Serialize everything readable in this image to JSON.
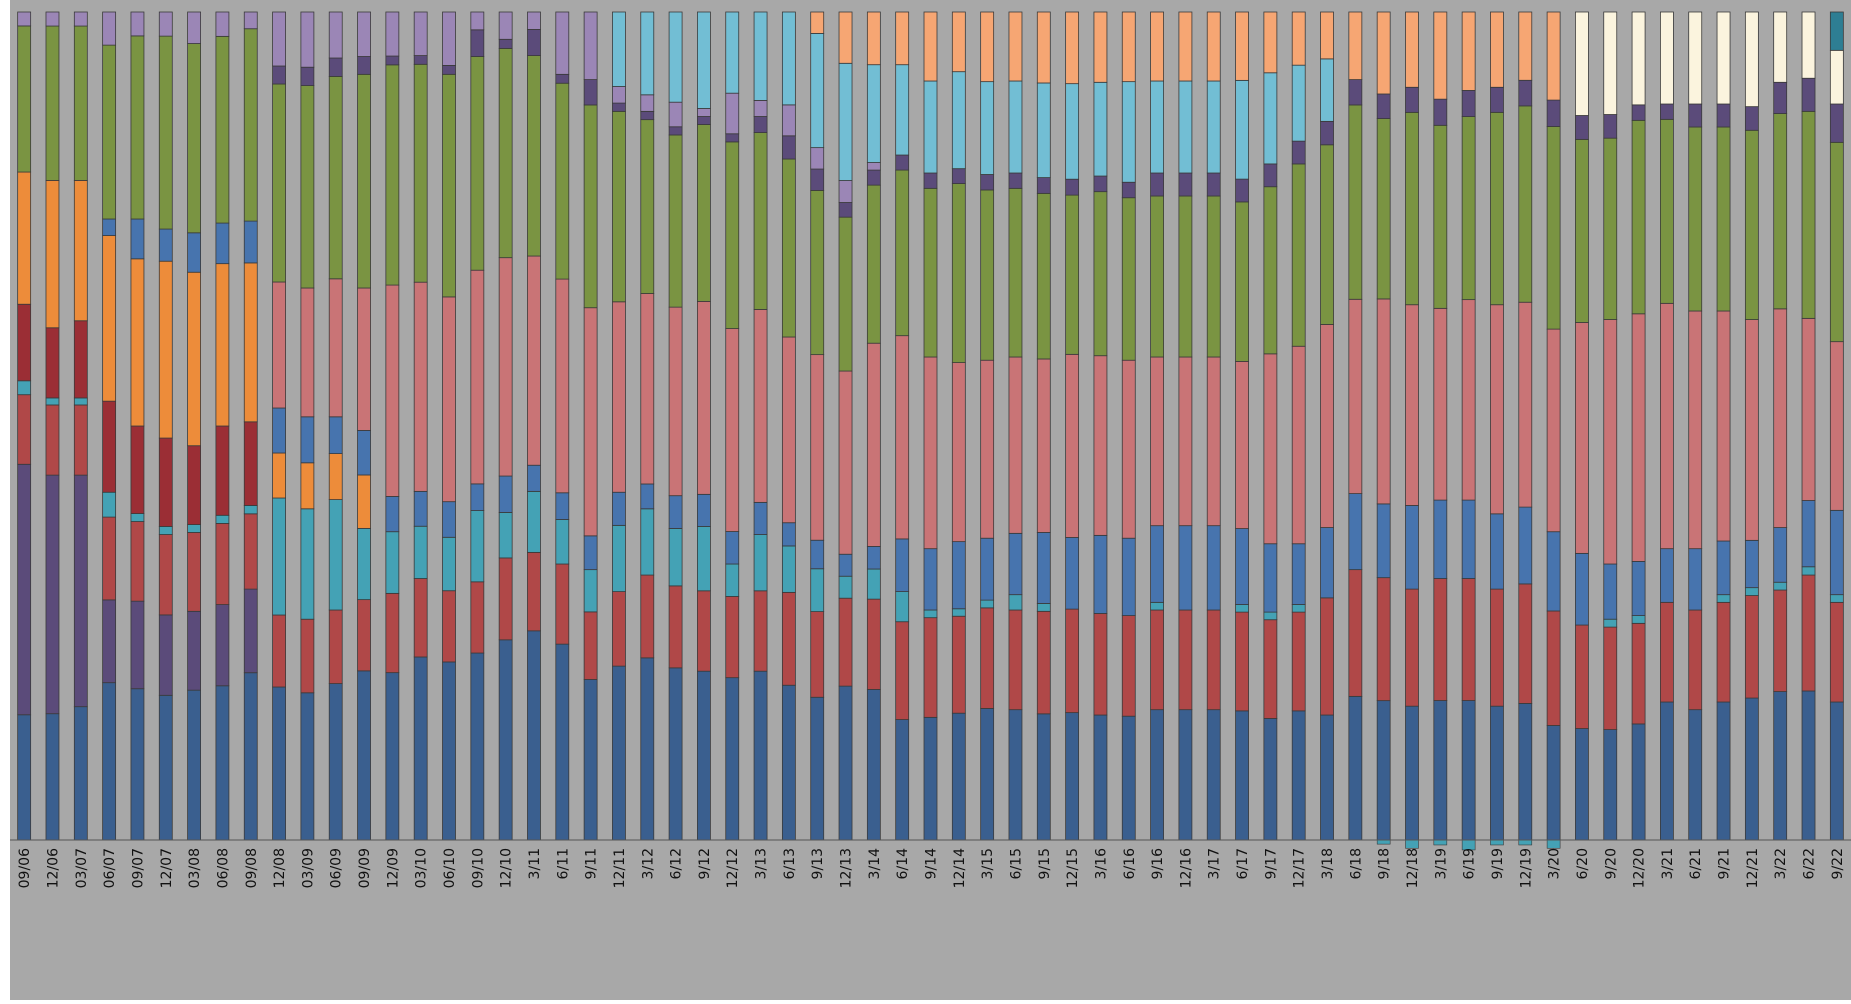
{
  "chart_data": {
    "type": "bar",
    "stacked": "percent",
    "title": "",
    "xlabel": "",
    "ylabel": "",
    "grid": false,
    "legend": "none",
    "ylim": [
      0,
      100
    ],
    "categories": [
      "09/06",
      "12/06",
      "03/07",
      "06/07",
      "09/07",
      "12/07",
      "03/08",
      "06/08",
      "09/08",
      "12/08",
      "03/09",
      "06/09",
      "09/09",
      "12/09",
      "03/10",
      "06/10",
      "09/10",
      "12/10",
      "3/11",
      "6/11",
      "9/11",
      "12/11",
      "3/12",
      "6/12",
      "9/12",
      "12/12",
      "3/13",
      "6/13",
      "9/13",
      "12/13",
      "3/14",
      "6/14",
      "9/14",
      "12/14",
      "3/15",
      "6/15",
      "9/15",
      "12/15",
      "3/16",
      "6/16",
      "9/16",
      "12/16",
      "3/17",
      "6/17",
      "9/17",
      "12/17",
      "3/18",
      "6/18",
      "9/18",
      "12/18",
      "3/19",
      "6/19",
      "9/19",
      "12/19",
      "3/20",
      "6/20",
      "9/20",
      "12/20",
      "3/21",
      "6/21",
      "9/21",
      "12/21",
      "3/22",
      "6/22",
      "9/22"
    ],
    "series": [
      {
        "color": "#3A5F8F",
        "values": [
          18,
          18,
          19,
          19,
          19,
          18,
          19,
          19,
          20,
          17,
          16,
          17,
          19,
          19,
          21,
          20,
          21,
          22,
          24,
          22,
          19,
          21,
          22,
          21,
          21,
          20,
          21,
          20,
          20,
          21,
          20,
          16,
          16,
          17,
          17,
          17,
          16,
          16,
          16,
          16,
          17,
          17,
          17,
          17,
          16,
          17,
          16,
          17,
          17,
          16,
          16,
          16,
          16,
          16,
          13,
          14,
          14,
          15,
          18,
          17,
          18,
          18,
          19,
          18,
          18
        ]
      },
      {
        "color": "#5B4B7A",
        "values": [
          36,
          34,
          33,
          10,
          11,
          10,
          10,
          10,
          10,
          0,
          0,
          0,
          0,
          0,
          0,
          0,
          0,
          0,
          0,
          0,
          0,
          0,
          0,
          0,
          0,
          0,
          0,
          0,
          0,
          0,
          0,
          0,
          0,
          0,
          0,
          0,
          0,
          0,
          0,
          0,
          0,
          0,
          0,
          0,
          0,
          0,
          0,
          0,
          0,
          0,
          0,
          0,
          0,
          0,
          0,
          0,
          0,
          0,
          0,
          0,
          0,
          0,
          0,
          0,
          0
        ]
      },
      {
        "color": "#B04848",
        "values": [
          10,
          10,
          10,
          10,
          10,
          10,
          10,
          10,
          9,
          8,
          8,
          8,
          8,
          9,
          9,
          8,
          8,
          9,
          9,
          9,
          8,
          9,
          10,
          10,
          10,
          10,
          10,
          12,
          12,
          12,
          12,
          13,
          13,
          13,
          13,
          13,
          13,
          13,
          13,
          13,
          13,
          13,
          13,
          13,
          13,
          13,
          15,
          15,
          15,
          14,
          14,
          14,
          14,
          14,
          13,
          13,
          13,
          13,
          13,
          13,
          13,
          13,
          13,
          14,
          13
        ]
      },
      {
        "color": "#44A2B5",
        "values": [
          2,
          1,
          1,
          3,
          1,
          1,
          1,
          1,
          1,
          13,
          12,
          12,
          8,
          7,
          6,
          6,
          8,
          5,
          7,
          5,
          5,
          8,
          8,
          7,
          8,
          4,
          7,
          6,
          6,
          3,
          4,
          4,
          1,
          1,
          1,
          2,
          1,
          0,
          0,
          0,
          1,
          0,
          0,
          1,
          1,
          1,
          0,
          0,
          0,
          0,
          0,
          0,
          0,
          0,
          0,
          0,
          1,
          1,
          0,
          0,
          1,
          1,
          1,
          1,
          1
        ]
      },
      {
        "color": "#4774AE",
        "values": [
          0,
          0,
          0,
          0,
          0,
          0,
          0,
          0,
          0,
          0,
          0,
          0,
          0,
          0,
          0,
          0,
          0,
          0,
          0,
          0,
          0,
          4,
          3,
          4,
          4,
          4,
          4,
          3,
          4,
          3,
          3,
          7,
          8,
          9,
          8,
          8,
          9,
          9,
          10,
          10,
          10,
          11,
          11,
          10,
          9,
          8,
          9,
          9,
          9,
          10,
          9,
          9,
          9,
          9,
          9,
          9,
          7,
          7,
          7,
          8,
          7,
          6,
          7,
          8,
          11
        ]
      },
      {
        "color": "#9B2E35",
        "values": [
          11,
          10,
          11,
          11,
          11,
          11,
          10,
          11,
          10,
          0,
          0,
          0,
          0,
          0,
          0,
          0,
          0,
          0,
          0,
          0,
          0,
          0,
          0,
          0,
          0,
          0,
          0,
          0,
          0,
          0,
          0,
          0,
          0,
          0,
          0,
          0,
          0,
          0,
          0,
          0,
          0,
          0,
          0,
          0,
          0,
          0,
          0,
          0,
          0,
          0,
          0,
          0,
          0,
          0,
          0,
          0,
          0,
          0,
          0,
          0,
          0,
          0,
          0,
          0,
          0
        ]
      },
      {
        "color": "#ED8C3A",
        "values": [
          19,
          21,
          20,
          20,
          21,
          22,
          22,
          20,
          19,
          5,
          5,
          5,
          6,
          0,
          0,
          0,
          0,
          0,
          0,
          0,
          0,
          0,
          0,
          0,
          0,
          0,
          0,
          0,
          0,
          0,
          0,
          0,
          0,
          0,
          0,
          0,
          0,
          0,
          0,
          0,
          0,
          0,
          0,
          0,
          0,
          0,
          0,
          0,
          0,
          0,
          0,
          0,
          0,
          0,
          0,
          0,
          0,
          0,
          0,
          0,
          0,
          0,
          0,
          0,
          0
        ]
      },
      {
        "color": "#4774AE",
        "values": [
          0,
          0,
          0,
          2,
          5,
          4,
          5,
          5,
          5,
          5,
          5,
          4,
          5,
          4,
          4,
          4,
          3,
          4,
          3,
          3,
          4,
          0,
          0,
          0,
          0,
          0,
          0,
          0,
          0,
          0,
          0,
          0,
          0,
          0,
          0,
          0,
          0,
          0,
          0,
          0,
          0,
          0,
          0,
          0,
          0,
          0,
          0,
          0,
          0,
          0,
          0,
          0,
          0,
          0,
          0,
          0,
          0,
          0,
          0,
          0,
          0,
          0,
          0,
          0,
          0
        ]
      },
      {
        "color": "#C97476",
        "values": [
          0,
          0,
          0,
          0,
          0,
          0,
          0,
          0,
          0,
          14,
          14,
          15,
          16,
          24,
          24,
          23,
          24,
          24,
          24,
          24,
          27,
          23,
          23,
          23,
          24,
          25,
          24,
          24,
          26,
          25,
          27,
          27,
          25,
          24,
          23,
          23,
          22,
          23,
          23,
          23,
          22,
          22,
          22,
          22,
          25,
          26,
          26,
          23,
          25,
          24,
          22,
          23,
          25,
          24,
          23,
          29,
          31,
          32,
          32,
          31,
          30,
          28,
          28,
          22,
          22
        ]
      },
      {
        "color": "#7A9442",
        "values": [
          21,
          22,
          22,
          21,
          23,
          24,
          24,
          23,
          23,
          22,
          22,
          22,
          24,
          25,
          25,
          25,
          24,
          23,
          23,
          22,
          24,
          23,
          21,
          21,
          22,
          23,
          22,
          23,
          23,
          21,
          21,
          22,
          22,
          24,
          22,
          22,
          21,
          20,
          21,
          21,
          21,
          21,
          21,
          21,
          22,
          24,
          23,
          23,
          22,
          23,
          21,
          21,
          23,
          23,
          23,
          23,
          23,
          25,
          24,
          24,
          24,
          24,
          25,
          25,
          26
        ]
      },
      {
        "color": "#5B4B7A",
        "values": [
          0,
          0,
          0,
          0,
          0,
          0,
          0,
          0,
          0,
          2,
          2,
          2,
          2,
          1,
          1,
          1,
          3,
          1,
          3,
          1,
          3,
          1,
          1,
          1,
          1,
          1,
          2,
          3,
          3,
          2,
          2,
          2,
          2,
          2,
          2,
          2,
          2,
          2,
          2,
          2,
          3,
          3,
          3,
          3,
          3,
          3,
          3,
          3,
          3,
          3,
          3,
          3,
          3,
          3,
          3,
          3,
          3,
          2,
          2,
          3,
          3,
          3,
          4,
          4,
          5
        ]
      },
      {
        "color": "#E38A8A",
        "values": [
          0,
          0,
          0,
          0,
          0,
          0,
          0,
          0,
          0,
          0,
          0,
          0,
          0,
          0,
          0,
          0,
          0,
          0,
          0,
          0,
          0,
          0,
          0,
          0,
          0,
          0,
          0,
          0,
          0,
          0,
          0,
          0,
          0,
          0,
          0,
          0,
          0,
          0,
          0,
          0,
          0,
          0,
          0,
          0,
          0,
          0,
          0,
          0,
          0,
          0,
          0,
          0,
          0,
          0,
          0,
          0,
          0,
          0,
          0,
          0,
          0,
          0,
          0,
          0,
          0
        ]
      },
      {
        "color": "#9B86B6",
        "values": [
          2,
          2,
          2,
          4,
          3,
          3,
          4,
          3,
          2,
          6,
          6,
          5,
          5,
          5,
          5,
          6,
          2,
          3,
          2,
          7,
          8,
          2,
          2,
          3,
          1,
          5,
          2,
          4,
          3,
          3,
          1,
          0,
          0,
          0,
          0,
          0,
          0,
          0,
          0,
          0,
          0,
          0,
          0,
          0,
          0,
          0,
          0,
          0,
          0,
          0,
          0,
          0,
          0,
          0,
          0,
          0,
          0,
          0,
          0,
          0,
          0,
          0,
          0,
          0,
          0
        ]
      },
      {
        "color": "#72BED4",
        "values": [
          0,
          0,
          0,
          0,
          0,
          0,
          0,
          0,
          0,
          0,
          0,
          0,
          0,
          0,
          0,
          0,
          0,
          0,
          0,
          0,
          0,
          9,
          10,
          11,
          12,
          10,
          11,
          12,
          16,
          16,
          13,
          12,
          12,
          13,
          12,
          12,
          12,
          12,
          12,
          13,
          12,
          12,
          12,
          13,
          12,
          10,
          8,
          0,
          0,
          0,
          0,
          0,
          0,
          0,
          0,
          0,
          0,
          0,
          0,
          0,
          0,
          0,
          0,
          0,
          0
        ]
      },
      {
        "color": "#F6A673",
        "values": [
          0,
          0,
          0,
          0,
          0,
          0,
          0,
          0,
          0,
          0,
          0,
          0,
          0,
          0,
          0,
          0,
          0,
          0,
          0,
          0,
          0,
          0,
          0,
          0,
          0,
          0,
          0,
          0,
          3,
          7,
          7,
          7,
          9,
          8,
          9,
          9,
          9,
          9,
          9,
          9,
          9,
          9,
          9,
          9,
          8,
          7,
          6,
          8,
          10,
          9,
          10,
          9,
          9,
          8,
          10,
          0,
          0,
          0,
          0,
          0,
          0,
          0,
          0,
          0,
          0
        ]
      },
      {
        "color": "#FBF4DE",
        "values": [
          0,
          0,
          0,
          0,
          0,
          0,
          0,
          0,
          0,
          0,
          0,
          0,
          0,
          0,
          0,
          0,
          0,
          0,
          0,
          0,
          0,
          0,
          0,
          0,
          0,
          0,
          0,
          0,
          0,
          0,
          0,
          0,
          0,
          0,
          0,
          0,
          0,
          0,
          0,
          0,
          0,
          0,
          0,
          0,
          0,
          0,
          0,
          0,
          0,
          0,
          0,
          0,
          0,
          0,
          0,
          13,
          13,
          12,
          12,
          12,
          12,
          12,
          9,
          8,
          7
        ]
      },
      {
        "color": "#2E7E93",
        "values": [
          0,
          0,
          0,
          0,
          0,
          0,
          0,
          0,
          0,
          0,
          0,
          0,
          0,
          0,
          0,
          0,
          0,
          0,
          0,
          0,
          0,
          0,
          0,
          0,
          0,
          0,
          0,
          0,
          0,
          0,
          0,
          0,
          0,
          0,
          0,
          0,
          0,
          0,
          0,
          0,
          0,
          0,
          0,
          0,
          0,
          0,
          0,
          0,
          0,
          0,
          0,
          0,
          0,
          0,
          0,
          0,
          0,
          0,
          0,
          0,
          0,
          0,
          0,
          0,
          5
        ]
      }
    ],
    "negative": [
      {
        "index": 48,
        "value": 0.5,
        "color": "#44A2B5"
      },
      {
        "index": 49,
        "value": 1.0,
        "color": "#44A2B5"
      },
      {
        "index": 50,
        "value": 0.6,
        "color": "#44A2B5"
      },
      {
        "index": 51,
        "value": 1.2,
        "color": "#44A2B5"
      },
      {
        "index": 52,
        "value": 0.6,
        "color": "#44A2B5"
      },
      {
        "index": 53,
        "value": 0.6,
        "color": "#44A2B5"
      },
      {
        "index": 54,
        "value": 1.0,
        "color": "#44A2B5"
      }
    ],
    "colors": {
      "plot_background": "#A8A8A8",
      "page_background": "#FFFFFF",
      "bar_outline": "#3a3a3a"
    }
  }
}
